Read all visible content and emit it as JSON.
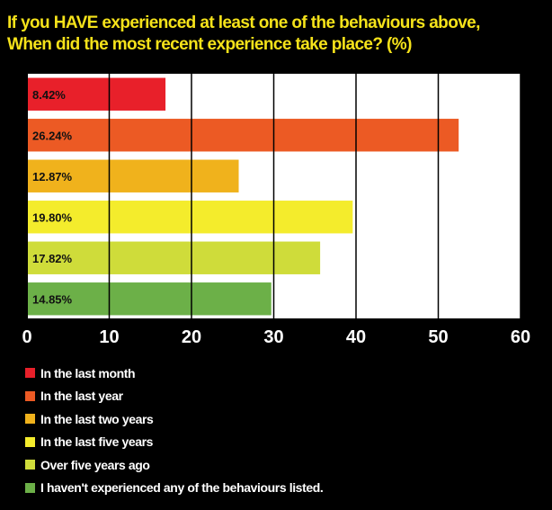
{
  "chart_data": {
    "type": "bar",
    "orientation": "horizontal",
    "title_lines": [
      "If you HAVE experienced at least one of the behaviours above,",
      "When did the most recent experience take place? (%)"
    ],
    "categories": [
      "In the last month",
      "In the last year",
      "In the last two years",
      "In the last five years",
      "Over five years ago",
      "I haven't experienced any of the behaviours listed."
    ],
    "values": [
      8.42,
      26.24,
      12.87,
      19.8,
      17.82,
      14.85
    ],
    "value_labels": [
      "8.42%",
      "26.24%",
      "12.87%",
      "19.80%",
      "17.82%",
      "14.85%"
    ],
    "colors": [
      "#e8202a",
      "#ec5a24",
      "#f0b21c",
      "#f4ec2c",
      "#cfdc3a",
      "#6cb048"
    ],
    "bar_scale_factor": 2,
    "xlim": [
      0,
      60
    ],
    "xticks": [
      "0",
      "10",
      "20",
      "30",
      "40",
      "50",
      "60"
    ],
    "grid": true,
    "legend_placement": "bottom",
    "background": "#000000",
    "title_color": "#f5e21a",
    "text_color": "#ffffff",
    "plot_background": "#ffffff",
    "gridline_color": "#000000"
  }
}
